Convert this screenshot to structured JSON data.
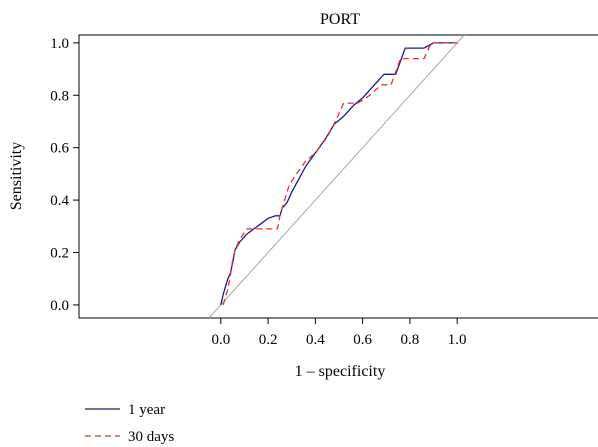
{
  "chart_data": {
    "type": "line",
    "title": "PORT",
    "xlabel": "1 – specificity",
    "ylabel": "Sensitivity",
    "xlim": [
      -0.6,
      1.6
    ],
    "ylim": [
      -0.05,
      1.03
    ],
    "x_ticks": [
      0.0,
      0.2,
      0.4,
      0.6,
      0.8,
      1.0
    ],
    "x_tick_labels": [
      "0.0",
      "0.2",
      "0.4",
      "0.6",
      "0.8",
      "1.0"
    ],
    "y_ticks": [
      0.0,
      0.2,
      0.4,
      0.6,
      0.8,
      1.0
    ],
    "y_tick_labels": [
      "0.0",
      "0.2",
      "0.4",
      "0.6",
      "0.8",
      "1.0"
    ],
    "grid": false,
    "legend_position": "bottom-left",
    "reference_line": {
      "points": [
        [
          -0.05,
          -0.05
        ],
        [
          1.03,
          1.03
        ]
      ],
      "color": "#a9a9a9"
    },
    "series": [
      {
        "name": "1 year",
        "color": "#1a1a8c",
        "dash": "solid",
        "points": [
          [
            0.0,
            0.0
          ],
          [
            0.01,
            0.04
          ],
          [
            0.02,
            0.07
          ],
          [
            0.03,
            0.1
          ],
          [
            0.04,
            0.12
          ],
          [
            0.05,
            0.16
          ],
          [
            0.06,
            0.21
          ],
          [
            0.08,
            0.24
          ],
          [
            0.11,
            0.27
          ],
          [
            0.14,
            0.29
          ],
          [
            0.17,
            0.31
          ],
          [
            0.2,
            0.33
          ],
          [
            0.23,
            0.34
          ],
          [
            0.25,
            0.34
          ],
          [
            0.26,
            0.37
          ],
          [
            0.28,
            0.39
          ],
          [
            0.3,
            0.43
          ],
          [
            0.33,
            0.48
          ],
          [
            0.36,
            0.53
          ],
          [
            0.4,
            0.58
          ],
          [
            0.44,
            0.63
          ],
          [
            0.48,
            0.69
          ],
          [
            0.52,
            0.72
          ],
          [
            0.56,
            0.76
          ],
          [
            0.6,
            0.79
          ],
          [
            0.65,
            0.84
          ],
          [
            0.69,
            0.88
          ],
          [
            0.74,
            0.88
          ],
          [
            0.78,
            0.98
          ],
          [
            0.86,
            0.98
          ],
          [
            0.88,
            0.99
          ],
          [
            0.9,
            1.0
          ],
          [
            1.0,
            1.0
          ]
        ]
      },
      {
        "name": "30 days",
        "color": "#e8302a",
        "dash": "dashed",
        "points": [
          [
            0.01,
            0.0
          ],
          [
            0.02,
            0.03
          ],
          [
            0.03,
            0.06
          ],
          [
            0.04,
            0.11
          ],
          [
            0.05,
            0.17
          ],
          [
            0.06,
            0.21
          ],
          [
            0.08,
            0.25
          ],
          [
            0.11,
            0.29
          ],
          [
            0.14,
            0.29
          ],
          [
            0.2,
            0.29
          ],
          [
            0.24,
            0.29
          ],
          [
            0.25,
            0.34
          ],
          [
            0.27,
            0.4
          ],
          [
            0.29,
            0.46
          ],
          [
            0.32,
            0.5
          ],
          [
            0.36,
            0.55
          ],
          [
            0.4,
            0.58
          ],
          [
            0.45,
            0.64
          ],
          [
            0.49,
            0.71
          ],
          [
            0.52,
            0.77
          ],
          [
            0.58,
            0.77
          ],
          [
            0.63,
            0.8
          ],
          [
            0.68,
            0.84
          ],
          [
            0.72,
            0.84
          ],
          [
            0.76,
            0.94
          ],
          [
            0.86,
            0.94
          ],
          [
            0.89,
            1.0
          ],
          [
            1.0,
            1.0
          ]
        ]
      }
    ]
  }
}
